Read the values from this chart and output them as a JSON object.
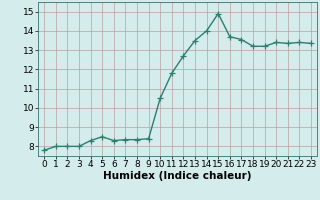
{
  "x": [
    0,
    1,
    2,
    3,
    4,
    5,
    6,
    7,
    8,
    9,
    10,
    11,
    12,
    13,
    14,
    15,
    16,
    17,
    18,
    19,
    20,
    21,
    22,
    23
  ],
  "y": [
    7.8,
    8.0,
    8.0,
    8.0,
    8.3,
    8.5,
    8.3,
    8.35,
    8.35,
    8.4,
    10.5,
    11.8,
    12.7,
    13.5,
    14.0,
    14.9,
    13.7,
    13.55,
    13.2,
    13.2,
    13.4,
    13.35,
    13.4,
    13.35
  ],
  "line_color": "#2e7d6e",
  "marker": "+",
  "marker_color": "#2e7d6e",
  "bg_color": "#d4ecec",
  "grid_color": "#b8a0a0",
  "xlabel": "Humidex (Indice chaleur)",
  "ylim": [
    7.5,
    15.5
  ],
  "xlim": [
    -0.5,
    23.5
  ],
  "yticks": [
    8,
    9,
    10,
    11,
    12,
    13,
    14,
    15
  ],
  "xticks": [
    0,
    1,
    2,
    3,
    4,
    5,
    6,
    7,
    8,
    9,
    10,
    11,
    12,
    13,
    14,
    15,
    16,
    17,
    18,
    19,
    20,
    21,
    22,
    23
  ],
  "tick_label_fontsize": 6.5,
  "xlabel_fontsize": 7.5,
  "line_width": 1.0,
  "marker_size": 4
}
